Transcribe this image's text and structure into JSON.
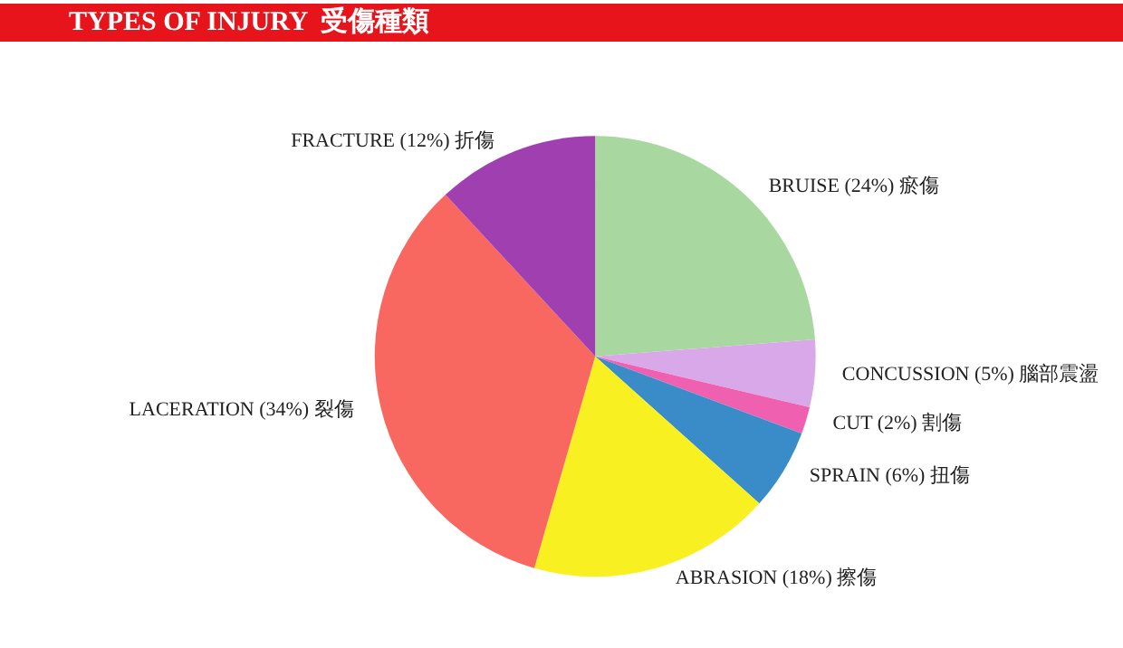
{
  "chart_data": {
    "type": "pie",
    "title": "TYPES OF INJURY  受傷種類",
    "categories": [
      "BRUISE (24%) 瘀傷",
      "CONCUSSION (5%) 腦部震盪",
      "CUT (2%) 割傷",
      "SPRAIN (6%) 扭傷",
      "ABRASION (18%) 擦傷",
      "LACERATION (34%) 裂傷",
      "FRACTURE (12%) 折傷"
    ],
    "values": [
      24,
      5,
      2,
      6,
      18,
      34,
      12
    ],
    "colors": [
      "#a8d8a0",
      "#d8a8e8",
      "#f060b0",
      "#3a8cc8",
      "#f8f020",
      "#f86860",
      "#a040b0"
    ]
  }
}
